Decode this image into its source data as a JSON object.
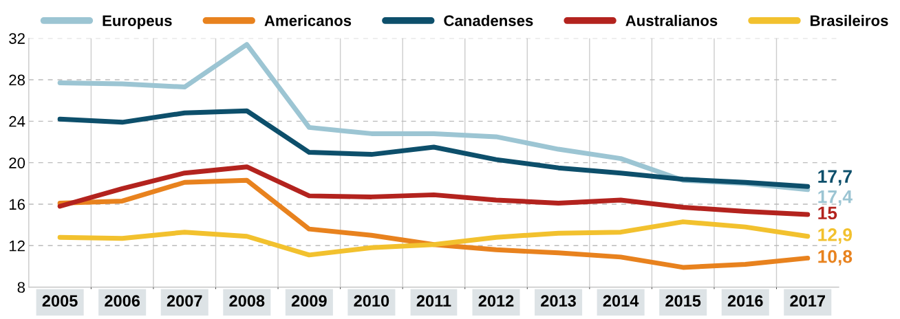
{
  "chart_data": {
    "type": "line",
    "categories": [
      "2005",
      "2006",
      "2007",
      "2008",
      "2009",
      "2010",
      "2011",
      "2012",
      "2013",
      "2014",
      "2015",
      "2016",
      "2017"
    ],
    "series": [
      {
        "name": "Europeus",
        "color": "#9cc5d3",
        "values": [
          27.7,
          27.6,
          27.3,
          31.4,
          23.4,
          22.8,
          22.8,
          22.5,
          21.3,
          20.4,
          18.3,
          18.0,
          17.4
        ]
      },
      {
        "name": "Americanos",
        "color": "#e8821e",
        "values": [
          16.1,
          16.3,
          18.1,
          18.3,
          13.6,
          13.0,
          12.1,
          11.6,
          11.3,
          10.9,
          9.9,
          10.2,
          10.8
        ]
      },
      {
        "name": "Canadenses",
        "color": "#0d4f6b",
        "values": [
          24.2,
          23.9,
          24.8,
          25.0,
          21.0,
          20.8,
          21.5,
          20.3,
          19.5,
          19.0,
          18.4,
          18.1,
          17.7
        ]
      },
      {
        "name": "Australianos",
        "color": "#b3231e",
        "values": [
          15.8,
          17.5,
          19.0,
          19.6,
          16.8,
          16.7,
          16.9,
          16.4,
          16.1,
          16.4,
          15.7,
          15.3,
          15.0
        ]
      },
      {
        "name": "Brasileiros",
        "color": "#f2c12e",
        "values": [
          12.8,
          12.7,
          13.3,
          12.9,
          11.1,
          11.8,
          12.1,
          12.8,
          13.2,
          13.3,
          14.3,
          13.8,
          12.9
        ]
      }
    ],
    "ylim": [
      8,
      32
    ],
    "yticks": [
      8,
      12,
      16,
      20,
      24,
      28,
      32
    ],
    "grid": true,
    "legend": "top",
    "marker": "none",
    "line_style": "solid",
    "annotations": [
      {
        "text": "17,7",
        "x": "2017",
        "y": 17.7
      },
      {
        "text": "17,4",
        "x": "2017",
        "y": 17.4
      },
      {
        "text": "15",
        "x": "2017",
        "y": 15.0
      },
      {
        "text": "12,9",
        "x": "2017",
        "y": 12.9
      },
      {
        "text": "10,8",
        "x": "2017",
        "y": 10.8
      }
    ]
  }
}
